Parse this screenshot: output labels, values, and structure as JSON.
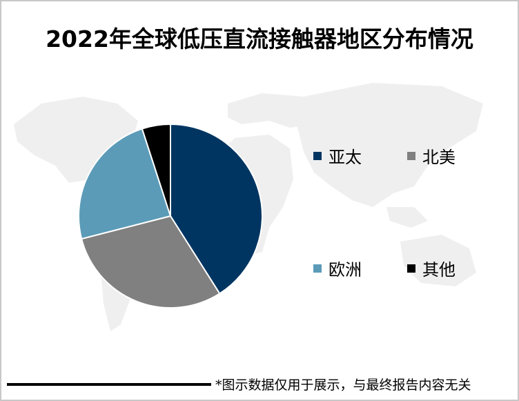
{
  "title": "2022年全球低压直流接触器地区分布情况",
  "footer": {
    "note": "*图示数据仅用于展示，与最终报告内容无关"
  },
  "legend": [
    {
      "label": "亚太",
      "color": "#003562"
    },
    {
      "label": "北美",
      "color": "#808080"
    },
    {
      "label": "欧洲",
      "color": "#5b9bb8"
    },
    {
      "label": "其他",
      "color": "#000000"
    }
  ],
  "chart_data": {
    "type": "pie",
    "title": "2022年全球低压直流接触器地区分布情况",
    "categories": [
      "亚太",
      "北美",
      "欧洲",
      "其他"
    ],
    "values": [
      41,
      30,
      24,
      5
    ],
    "unit": "%",
    "colors": [
      "#003562",
      "#808080",
      "#5b9bb8",
      "#000000"
    ],
    "start_angle": "12 o'clock, clockwise",
    "legend_position": "right",
    "data_labels": false
  }
}
